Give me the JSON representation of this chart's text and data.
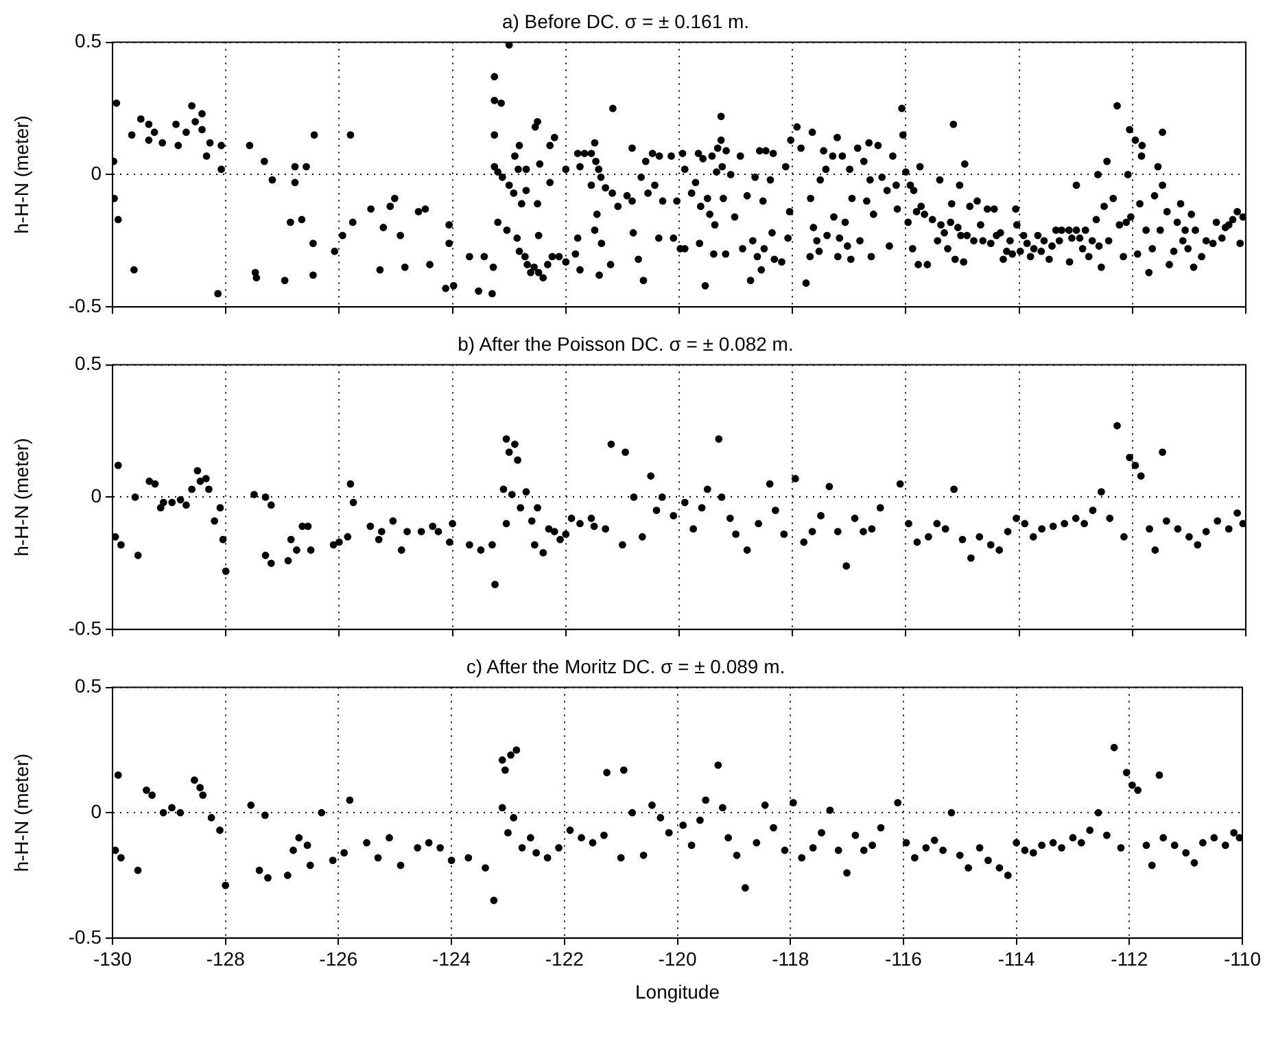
{
  "chart_data": [
    {
      "type": "scatter",
      "title": "a) Before DC. σ = ± 0.161 m.",
      "ylabel": "h-H-N (meter)",
      "xlim": [
        -130,
        -110
      ],
      "ylim": [
        -0.5,
        0.5
      ],
      "xticks": [
        -130,
        -128,
        -126,
        -124,
        -122,
        -120,
        -118,
        -116,
        -114,
        -112,
        -110
      ],
      "yticks": [
        -0.5,
        0,
        0.5
      ],
      "grid": true,
      "tick_labels": "y",
      "marker": "circle",
      "series": [
        {
          "color": "#000000",
          "x": [
            -129.98,
            -129.97,
            -129.93,
            -129.9,
            -129.66,
            -129.62,
            -129.5,
            -129.36,
            -129.36,
            -129.26,
            -129.12,
            -128.88,
            -128.84,
            -128.7,
            -128.6,
            -128.54,
            -128.42,
            -128.42,
            -128.34,
            -128.28,
            -128.08,
            -128.08,
            -128.14,
            -127.58,
            -127.32,
            -127.18,
            -127.48,
            -127.46,
            -126.96,
            -126.86,
            -126.78,
            -126.78,
            -126.66,
            -126.58,
            -126.46,
            -126.44,
            -126.46,
            -126.08,
            -125.94,
            -125.8,
            -125.76,
            -125.44,
            -125.22,
            -125.1,
            -125.02,
            -124.92,
            -125.28,
            -124.84,
            -124.6,
            -124.48,
            -124.4,
            -124.12,
            -123.98,
            -124.06,
            -124.06,
            -123.7,
            -123.44,
            -123.54,
            -123.3,
            -123.28,
            -123.26,
            -123.26,
            -123.26,
            -123.14,
            -123.0,
            -123.26,
            -123.2,
            -123.12,
            -123.2,
            -123.04,
            -123.0,
            -122.92,
            -122.9,
            -122.84,
            -122.82,
            -122.78,
            -122.7,
            -122.7,
            -122.86,
            -122.82,
            -122.72,
            -122.68,
            -122.62,
            -122.56,
            -122.48,
            -122.4,
            -122.32,
            -122.24,
            -122.12,
            -122.0,
            -122.5,
            -122.54,
            -122.5,
            -122.46,
            -122.28,
            -122.28,
            -122.2,
            -122.48,
            -122.0,
            -121.79,
            -121.75,
            -121.67,
            -121.55,
            -121.49,
            -121.55,
            -121.47,
            -121.42,
            -121.38,
            -121.3,
            -121.18,
            -121.79,
            -121.83,
            -121.75,
            -121.49,
            -121.45,
            -121.37,
            -121.41,
            -121.21,
            -121.17,
            -121.08,
            -120.92,
            -120.83,
            -120.83,
            -120.81,
            -120.72,
            -120.63,
            -120.67,
            -120.59,
            -120.47,
            -120.55,
            -120.43,
            -120.35,
            -120.36,
            -120.29,
            -120.14,
            -120.1,
            -120.04,
            -119.98,
            -119.94,
            -119.9,
            -119.9,
            -119.78,
            -119.71,
            -119.66,
            -119.64,
            -119.62,
            -119.58,
            -119.54,
            -119.5,
            -119.46,
            -119.42,
            -119.39,
            -119.37,
            -119.34,
            -119.32,
            -119.26,
            -119.26,
            -119.24,
            -119.22,
            -119.18,
            -119.17,
            -119.09,
            -119.02,
            -118.92,
            -118.88,
            -118.8,
            -118.74,
            -118.7,
            -118.66,
            -118.62,
            -118.58,
            -118.55,
            -118.52,
            -118.5,
            -118.47,
            -118.39,
            -118.36,
            -118.34,
            -118.32,
            -118.19,
            -118.12,
            -118.08,
            -118.05,
            -118.03,
            -117.92,
            -117.85,
            -117.76,
            -117.69,
            -117.68,
            -117.65,
            -117.63,
            -117.57,
            -117.53,
            -117.51,
            -117.45,
            -117.41,
            -117.39,
            -117.29,
            -117.27,
            -117.21,
            -117.2,
            -117.17,
            -117.12,
            -117.07,
            -117.03,
            -116.99,
            -116.97,
            -116.95,
            -116.85,
            -116.81,
            -116.74,
            -116.69,
            -116.65,
            -116.63,
            -116.61,
            -116.57,
            -116.49,
            -116.42,
            -116.33,
            -116.29,
            -116.23,
            -116.17,
            -116.15,
            -116.07,
            -116.05,
            -116.0,
            -115.96,
            -115.92,
            -115.88,
            -115.86,
            -115.81,
            -115.78,
            -115.75,
            -115.73,
            -115.67,
            -115.62,
            -115.53,
            -115.44,
            -115.4,
            -115.38,
            -115.32,
            -115.26,
            -115.21,
            -115.19,
            -115.16,
            -115.13,
            -115.08,
            -115.05,
            -115.03,
            -114.98,
            -114.96,
            -114.92,
            -114.87,
            -114.8,
            -114.74,
            -114.68,
            -114.64,
            -114.56,
            -114.5,
            -114.44,
            -114.4,
            -114.33,
            -114.28,
            -114.22,
            -114.16,
            -114.12,
            -114.06,
            -114.04,
            -113.98,
            -113.92,
            -113.86,
            -113.8,
            -113.74,
            -113.67,
            -113.61,
            -113.56,
            -113.47,
            -113.42,
            -113.35,
            -113.29,
            -113.25,
            -113.12,
            -113.11,
            -113.07,
            -112.99,
            -112.99,
            -112.93,
            -112.88,
            -112.83,
            -112.77,
            -112.71,
            -112.64,
            -112.61,
            -112.59,
            -112.55,
            -112.5,
            -112.45,
            -112.42,
            -112.34,
            -112.27,
            -112.23,
            -112.16,
            -112.11,
            -112.08,
            -112.05,
            -112.03,
            -111.95,
            -111.91,
            -111.87,
            -111.84,
            -111.83,
            -111.76,
            -111.71,
            -111.65,
            -111.61,
            -111.55,
            -111.51,
            -111.47,
            -111.47,
            -111.39,
            -111.35,
            -111.27,
            -111.21,
            -111.15,
            -111.11,
            -111.07,
            -111.02,
            -110.96,
            -110.92,
            -110.89,
            -110.78,
            -110.7,
            -110.58,
            -110.52,
            -110.42,
            -110.36,
            -110.3,
            -110.23,
            -110.15,
            -110.1,
            -110.05
          ],
          "values": [
            0.05,
            -0.09,
            0.27,
            -0.17,
            0.15,
            -0.36,
            0.21,
            0.19,
            0.13,
            0.16,
            0.12,
            0.19,
            0.11,
            0.16,
            0.26,
            0.2,
            0.23,
            0.17,
            0.07,
            0.12,
            0.11,
            0.02,
            -0.45,
            0.11,
            0.05,
            -0.02,
            -0.37,
            -0.39,
            -0.4,
            -0.18,
            0.03,
            -0.03,
            -0.17,
            0.03,
            -0.26,
            0.15,
            -0.38,
            -0.29,
            -0.23,
            0.15,
            -0.18,
            -0.13,
            -0.2,
            -0.12,
            -0.09,
            -0.23,
            -0.36,
            -0.35,
            -0.14,
            -0.13,
            -0.34,
            -0.43,
            -0.42,
            -0.19,
            -0.26,
            -0.31,
            -0.31,
            -0.44,
            -0.45,
            -0.35,
            0.15,
            0.37,
            0.28,
            0.27,
            0.49,
            0.03,
            0.01,
            -0.01,
            -0.18,
            -0.21,
            -0.04,
            -0.07,
            0.07,
            0.02,
            0.11,
            -0.11,
            0.02,
            -0.06,
            -0.24,
            -0.29,
            -0.31,
            -0.34,
            -0.37,
            -0.35,
            -0.37,
            -0.39,
            -0.34,
            -0.31,
            -0.31,
            -0.33,
            -0.11,
            0.18,
            0.2,
            0.04,
            -0.03,
            0.11,
            0.14,
            -0.23,
            0.02,
            0.08,
            0.03,
            0.08,
            0.08,
            0.12,
            -0.04,
            0.05,
            0.02,
            -0.01,
            -0.05,
            -0.07,
            -0.24,
            -0.3,
            -0.36,
            -0.21,
            -0.15,
            -0.26,
            -0.38,
            -0.34,
            0.25,
            -0.12,
            -0.08,
            -0.1,
            0.1,
            -0.22,
            -0.32,
            -0.4,
            -0.01,
            0.05,
            0.08,
            -0.07,
            -0.04,
            0.07,
            -0.24,
            -0.1,
            0.07,
            -0.24,
            -0.1,
            -0.28,
            0.08,
            0.02,
            -0.28,
            -0.07,
            -0.03,
            0.08,
            -0.26,
            -0.12,
            0.06,
            -0.42,
            -0.09,
            -0.15,
            0.07,
            -0.3,
            -0.19,
            0.01,
            0.1,
            0.22,
            0.13,
            0.03,
            -0.09,
            -0.3,
            0.09,
            0.0,
            -0.16,
            0.07,
            -0.28,
            -0.08,
            -0.4,
            -0.25,
            -0.01,
            -0.31,
            0.09,
            -0.36,
            -0.1,
            -0.28,
            0.09,
            -0.02,
            -0.22,
            0.08,
            -0.32,
            -0.33,
            0.03,
            -0.24,
            -0.14,
            0.13,
            0.18,
            0.1,
            -0.41,
            -0.31,
            -0.09,
            0.16,
            -0.2,
            -0.25,
            -0.29,
            -0.02,
            0.09,
            0.02,
            -0.23,
            0.07,
            -0.16,
            0.14,
            -0.31,
            -0.24,
            0.07,
            -0.18,
            -0.27,
            0.02,
            -0.32,
            -0.09,
            0.1,
            -0.25,
            0.05,
            -0.1,
            0.12,
            -0.02,
            -0.31,
            -0.15,
            0.11,
            -0.01,
            -0.06,
            -0.27,
            0.07,
            -0.04,
            -0.13,
            0.25,
            0.15,
            0.01,
            -0.18,
            -0.04,
            -0.28,
            -0.06,
            -0.14,
            -0.34,
            0.03,
            -0.12,
            -0.15,
            -0.34,
            -0.17,
            -0.25,
            -0.02,
            -0.19,
            -0.22,
            -0.28,
            -0.18,
            -0.11,
            0.19,
            -0.32,
            -0.2,
            -0.04,
            -0.23,
            -0.33,
            0.04,
            -0.23,
            -0.12,
            -0.25,
            -0.1,
            -0.19,
            -0.25,
            -0.13,
            -0.26,
            -0.13,
            -0.23,
            -0.22,
            -0.32,
            -0.29,
            -0.25,
            -0.3,
            -0.13,
            -0.19,
            -0.29,
            -0.23,
            -0.26,
            -0.31,
            -0.28,
            -0.23,
            -0.29,
            -0.25,
            -0.32,
            -0.27,
            -0.21,
            -0.25,
            -0.21,
            -0.21,
            -0.33,
            -0.24,
            -0.04,
            -0.21,
            -0.24,
            -0.28,
            -0.21,
            -0.31,
            -0.25,
            -0.17,
            0.0,
            -0.27,
            -0.35,
            -0.12,
            0.05,
            -0.25,
            -0.09,
            0.26,
            -0.19,
            -0.31,
            -0.18,
            0.0,
            0.17,
            -0.16,
            0.13,
            -0.3,
            -0.11,
            0.07,
            0.11,
            -0.21,
            -0.37,
            -0.28,
            -0.08,
            0.03,
            -0.21,
            0.16,
            -0.04,
            -0.14,
            -0.34,
            -0.29,
            -0.18,
            -0.11,
            -0.25,
            -0.21,
            -0.28,
            -0.15,
            -0.35,
            -0.21,
            -0.31,
            -0.25,
            -0.26,
            -0.18,
            -0.24,
            -0.2,
            -0.19,
            -0.17,
            -0.14,
            -0.26,
            -0.16
          ]
        }
      ]
    },
    {
      "type": "scatter",
      "title": "b) After the Poisson DC. σ = ± 0.082 m.",
      "ylabel": "h-H-N (meter)",
      "xlim": [
        -130,
        -110
      ],
      "ylim": [
        -0.5,
        0.5
      ],
      "xticks": [
        -130,
        -128,
        -126,
        -124,
        -122,
        -120,
        -118,
        -116,
        -114,
        -112,
        -110
      ],
      "yticks": [
        -0.5,
        0,
        0.5
      ],
      "grid": true,
      "tick_labels": "y",
      "marker": "circle",
      "series": [
        {
          "color": "#000000",
          "x": [
            -129.95,
            -129.9,
            -129.85,
            -129.6,
            -129.55,
            -129.35,
            -129.25,
            -129.15,
            -129.1,
            -128.95,
            -128.8,
            -128.7,
            -128.6,
            -128.5,
            -128.45,
            -128.35,
            -128.3,
            -128.2,
            -128.1,
            -128.05,
            -128.0,
            -127.5,
            -127.3,
            -127.2,
            -127.3,
            -127.2,
            -126.85,
            -126.75,
            -126.65,
            -126.55,
            -126.5,
            -126.9,
            -126.1,
            -126.0,
            -125.85,
            -125.8,
            -125.75,
            -125.45,
            -125.3,
            -125.25,
            -125.05,
            -124.9,
            -124.8,
            -124.55,
            -124.35,
            -124.25,
            -124.05,
            -124.0,
            -123.7,
            -123.5,
            -123.3,
            -123.25,
            -123.05,
            -123.0,
            -122.9,
            -122.85,
            -123.1,
            -123.05,
            -122.95,
            -122.8,
            -122.7,
            -122.6,
            -122.55,
            -122.5,
            -122.4,
            -122.3,
            -122.2,
            -122.1,
            -122.0,
            -121.9,
            -121.75,
            -121.55,
            -121.5,
            -121.3,
            -121.2,
            -120.95,
            -121.0,
            -120.8,
            -120.65,
            -120.5,
            -120.4,
            -120.3,
            -120.1,
            -119.9,
            -119.75,
            -119.6,
            -119.5,
            -119.3,
            -119.25,
            -119.1,
            -119.0,
            -118.8,
            -118.6,
            -118.4,
            -118.3,
            -118.15,
            -117.95,
            -117.8,
            -117.65,
            -117.5,
            -117.35,
            -117.2,
            -117.05,
            -116.9,
            -116.75,
            -116.6,
            -116.45,
            -116.1,
            -115.95,
            -115.8,
            -115.6,
            -115.45,
            -115.3,
            -115.15,
            -115.0,
            -114.85,
            -114.7,
            -114.5,
            -114.35,
            -114.2,
            -114.05,
            -113.9,
            -113.75,
            -113.6,
            -113.4,
            -113.2,
            -113.0,
            -112.85,
            -112.7,
            -112.55,
            -112.4,
            -112.27,
            -112.15,
            -112.05,
            -111.95,
            -111.85,
            -111.7,
            -111.6,
            -111.47,
            -111.4,
            -111.2,
            -111.0,
            -110.85,
            -110.7,
            -110.5,
            -110.3,
            -110.15,
            -110.05
          ],
          "values": [
            -0.15,
            0.12,
            -0.18,
            0.0,
            -0.22,
            0.06,
            0.05,
            -0.04,
            -0.02,
            -0.02,
            -0.01,
            -0.03,
            0.03,
            0.1,
            0.06,
            0.07,
            0.03,
            -0.09,
            -0.04,
            -0.16,
            -0.28,
            0.01,
            0.0,
            -0.03,
            -0.22,
            -0.25,
            -0.16,
            -0.2,
            -0.11,
            -0.11,
            -0.2,
            -0.24,
            -0.18,
            -0.17,
            -0.15,
            0.05,
            -0.02,
            -0.11,
            -0.16,
            -0.13,
            -0.09,
            -0.2,
            -0.13,
            -0.13,
            -0.11,
            -0.13,
            -0.17,
            -0.1,
            -0.18,
            -0.2,
            -0.18,
            -0.33,
            0.22,
            0.17,
            0.2,
            0.14,
            0.03,
            -0.1,
            0.01,
            -0.04,
            0.02,
            -0.09,
            -0.18,
            -0.04,
            -0.21,
            -0.12,
            -0.13,
            -0.16,
            -0.14,
            -0.08,
            -0.1,
            -0.08,
            -0.11,
            -0.12,
            0.2,
            0.17,
            -0.18,
            0.0,
            -0.15,
            0.08,
            -0.05,
            0.0,
            -0.07,
            -0.02,
            -0.12,
            -0.04,
            0.03,
            0.22,
            0.0,
            -0.08,
            -0.14,
            -0.2,
            -0.1,
            0.05,
            -0.05,
            -0.14,
            0.07,
            -0.17,
            -0.13,
            -0.07,
            0.04,
            -0.13,
            -0.26,
            -0.08,
            -0.13,
            -0.12,
            -0.04,
            0.05,
            -0.1,
            -0.17,
            -0.15,
            -0.1,
            -0.12,
            0.03,
            -0.16,
            -0.23,
            -0.15,
            -0.18,
            -0.2,
            -0.13,
            -0.08,
            -0.1,
            -0.15,
            -0.12,
            -0.11,
            -0.1,
            -0.08,
            -0.1,
            -0.05,
            0.02,
            -0.08,
            0.27,
            -0.15,
            0.15,
            0.12,
            0.08,
            -0.12,
            -0.2,
            0.17,
            -0.09,
            -0.12,
            -0.15,
            -0.18,
            -0.13,
            -0.09,
            -0.12,
            -0.06,
            -0.1
          ]
        }
      ]
    },
    {
      "type": "scatter",
      "title": "c) After the Moritz DC. σ = ± 0.089 m.",
      "xlabel": "Longitude",
      "ylabel": "h-H-N (meter)",
      "xlim": [
        -130,
        -110
      ],
      "ylim": [
        -0.5,
        0.5
      ],
      "xticks": [
        -130,
        -128,
        -126,
        -124,
        -122,
        -120,
        -118,
        -116,
        -114,
        -112,
        -110
      ],
      "yticks": [
        -0.5,
        0,
        0.5
      ],
      "grid": true,
      "marker": "circle",
      "series": [
        {
          "color": "#000000",
          "x": [
            -129.95,
            -129.9,
            -129.85,
            -129.55,
            -129.4,
            -129.3,
            -129.1,
            -128.95,
            -128.8,
            -128.55,
            -128.45,
            -128.4,
            -128.25,
            -128.1,
            -128.0,
            -127.55,
            -127.3,
            -127.4,
            -127.25,
            -126.9,
            -126.8,
            -126.7,
            -126.55,
            -126.5,
            -126.3,
            -126.1,
            -125.9,
            -125.8,
            -125.5,
            -125.3,
            -125.1,
            -124.9,
            -124.6,
            -124.4,
            -124.2,
            -124.0,
            -123.7,
            -123.4,
            -123.25,
            -123.1,
            -123.05,
            -122.95,
            -122.85,
            -123.1,
            -123.0,
            -122.9,
            -122.75,
            -122.6,
            -122.5,
            -122.3,
            -122.1,
            -121.9,
            -121.7,
            -121.5,
            -121.3,
            -121.25,
            -120.95,
            -121.0,
            -120.8,
            -120.6,
            -120.45,
            -120.3,
            -120.15,
            -119.9,
            -119.75,
            -119.6,
            -119.5,
            -119.28,
            -119.2,
            -119.1,
            -118.95,
            -118.8,
            -118.6,
            -118.45,
            -118.3,
            -118.1,
            -117.95,
            -117.8,
            -117.6,
            -117.45,
            -117.3,
            -117.15,
            -117.0,
            -116.85,
            -116.7,
            -116.55,
            -116.4,
            -116.1,
            -115.95,
            -115.8,
            -115.6,
            -115.45,
            -115.3,
            -115.15,
            -115.0,
            -114.85,
            -114.65,
            -114.5,
            -114.3,
            -114.15,
            -114.0,
            -113.85,
            -113.7,
            -113.55,
            -113.35,
            -113.2,
            -113.0,
            -112.85,
            -112.7,
            -112.55,
            -112.4,
            -112.27,
            -112.15,
            -112.05,
            -111.95,
            -111.85,
            -111.7,
            -111.6,
            -111.47,
            -111.4,
            -111.2,
            -111.0,
            -110.85,
            -110.7,
            -110.5,
            -110.3,
            -110.15,
            -110.05
          ],
          "values": [
            -0.15,
            0.15,
            -0.18,
            -0.23,
            0.09,
            0.07,
            0.0,
            0.02,
            0.0,
            0.13,
            0.1,
            0.07,
            -0.02,
            -0.07,
            -0.29,
            0.03,
            -0.01,
            -0.23,
            -0.26,
            -0.25,
            -0.15,
            -0.1,
            -0.13,
            -0.21,
            0.0,
            -0.19,
            -0.16,
            0.05,
            -0.12,
            -0.18,
            -0.1,
            -0.21,
            -0.14,
            -0.12,
            -0.14,
            -0.19,
            -0.18,
            -0.22,
            -0.35,
            0.21,
            0.17,
            0.23,
            0.25,
            0.02,
            -0.08,
            -0.02,
            -0.14,
            -0.1,
            -0.16,
            -0.18,
            -0.14,
            -0.07,
            -0.1,
            -0.12,
            -0.09,
            0.16,
            0.17,
            -0.18,
            0.0,
            -0.17,
            0.03,
            -0.02,
            -0.08,
            -0.05,
            -0.13,
            -0.03,
            0.05,
            0.19,
            0.02,
            -0.1,
            -0.17,
            -0.3,
            -0.12,
            0.03,
            -0.06,
            -0.15,
            0.04,
            -0.18,
            -0.14,
            -0.08,
            0.01,
            -0.15,
            -0.24,
            -0.09,
            -0.15,
            -0.13,
            -0.06,
            0.04,
            -0.12,
            -0.18,
            -0.14,
            -0.11,
            -0.15,
            0.0,
            -0.17,
            -0.22,
            -0.14,
            -0.19,
            -0.22,
            -0.25,
            -0.12,
            -0.15,
            -0.16,
            -0.13,
            -0.12,
            -0.14,
            -0.1,
            -0.12,
            -0.07,
            0.0,
            -0.09,
            0.26,
            -0.14,
            0.16,
            0.11,
            0.09,
            -0.13,
            -0.21,
            0.15,
            -0.1,
            -0.13,
            -0.16,
            -0.2,
            -0.12,
            -0.1,
            -0.13,
            -0.08,
            -0.1
          ]
        }
      ]
    }
  ]
}
